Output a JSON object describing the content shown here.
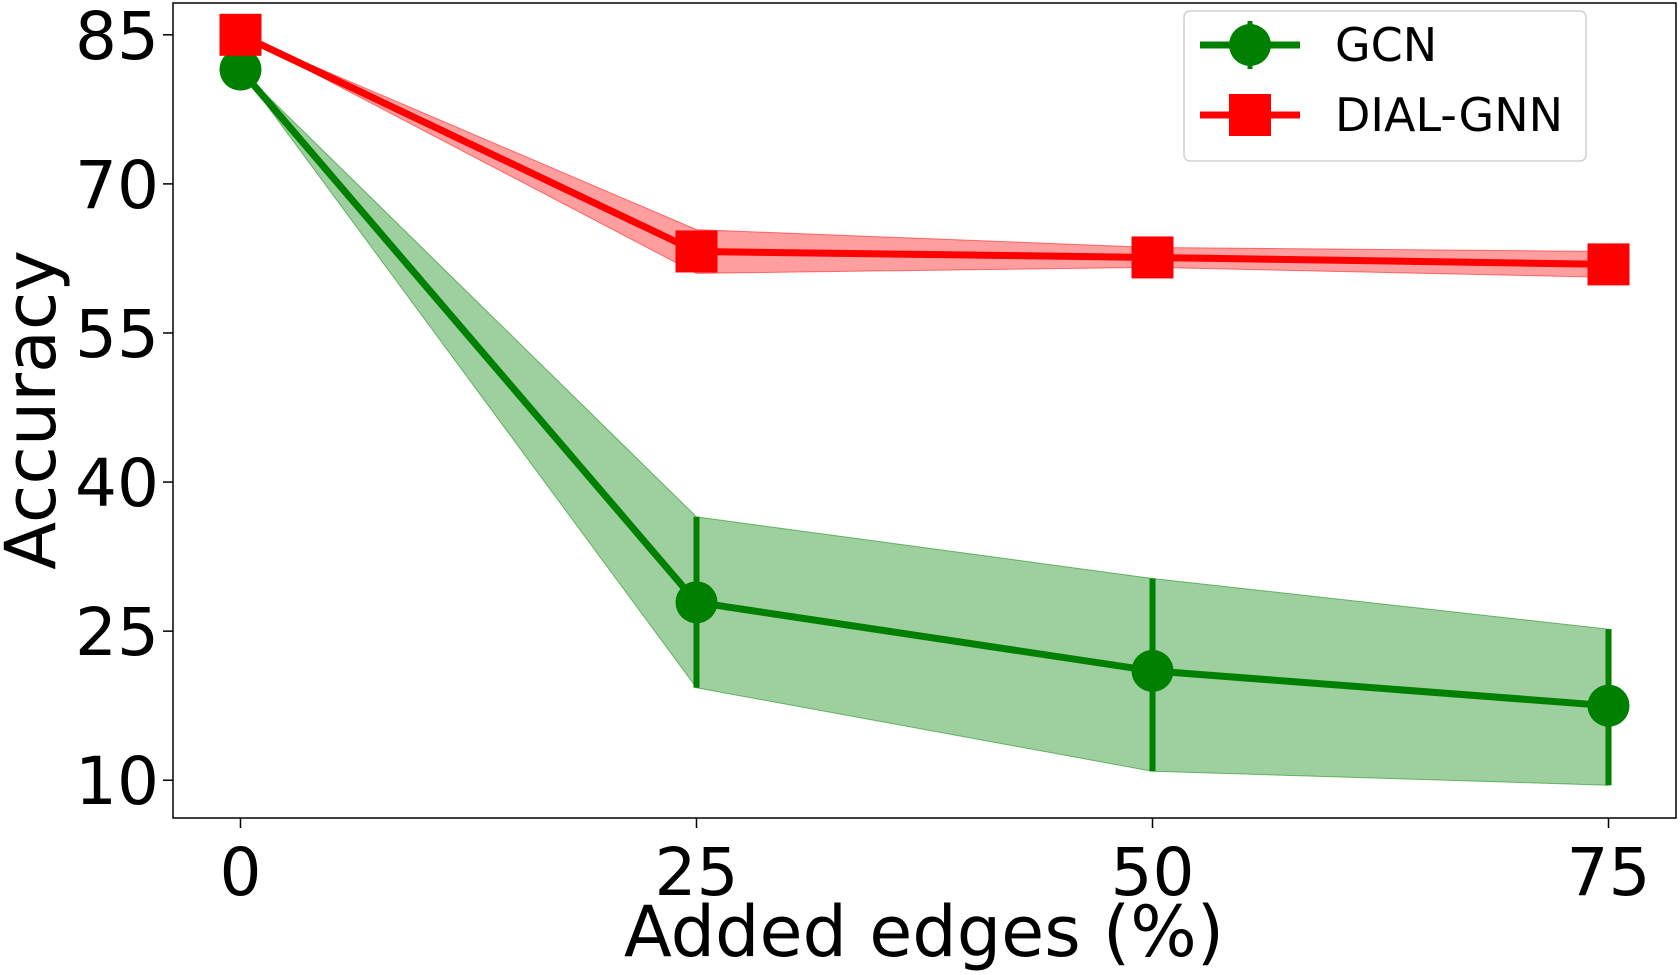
{
  "chart_data": {
    "type": "line",
    "title": "",
    "xlabel": "Added edges (%)",
    "ylabel": "Accuracy",
    "x": [
      0,
      25,
      50,
      75
    ],
    "xlim": [
      -3.7,
      78.7
    ],
    "ylim": [
      6.2,
      88.2
    ],
    "xticks": [
      0,
      25,
      50,
      75
    ],
    "yticks": [
      10,
      25,
      40,
      55,
      70,
      85
    ],
    "grid": false,
    "legend_position": "top-right",
    "series": [
      {
        "name": "GCN",
        "color": "#008000",
        "marker": "circle",
        "values": [
          81.5,
          27.9,
          21.0,
          17.5
        ],
        "lower": [
          81.5,
          19.3,
          10.9,
          9.5
        ],
        "upper": [
          81.5,
          36.5,
          30.3,
          25.2
        ],
        "error_bars": true
      },
      {
        "name": "DIAL-GNN",
        "color": "#ff0000",
        "marker": "square",
        "values": [
          85.0,
          63.2,
          62.6,
          61.9
        ],
        "lower": [
          85.0,
          61.0,
          61.6,
          60.6
        ],
        "upper": [
          85.0,
          65.4,
          63.6,
          63.2
        ],
        "error_bars": false
      }
    ]
  }
}
